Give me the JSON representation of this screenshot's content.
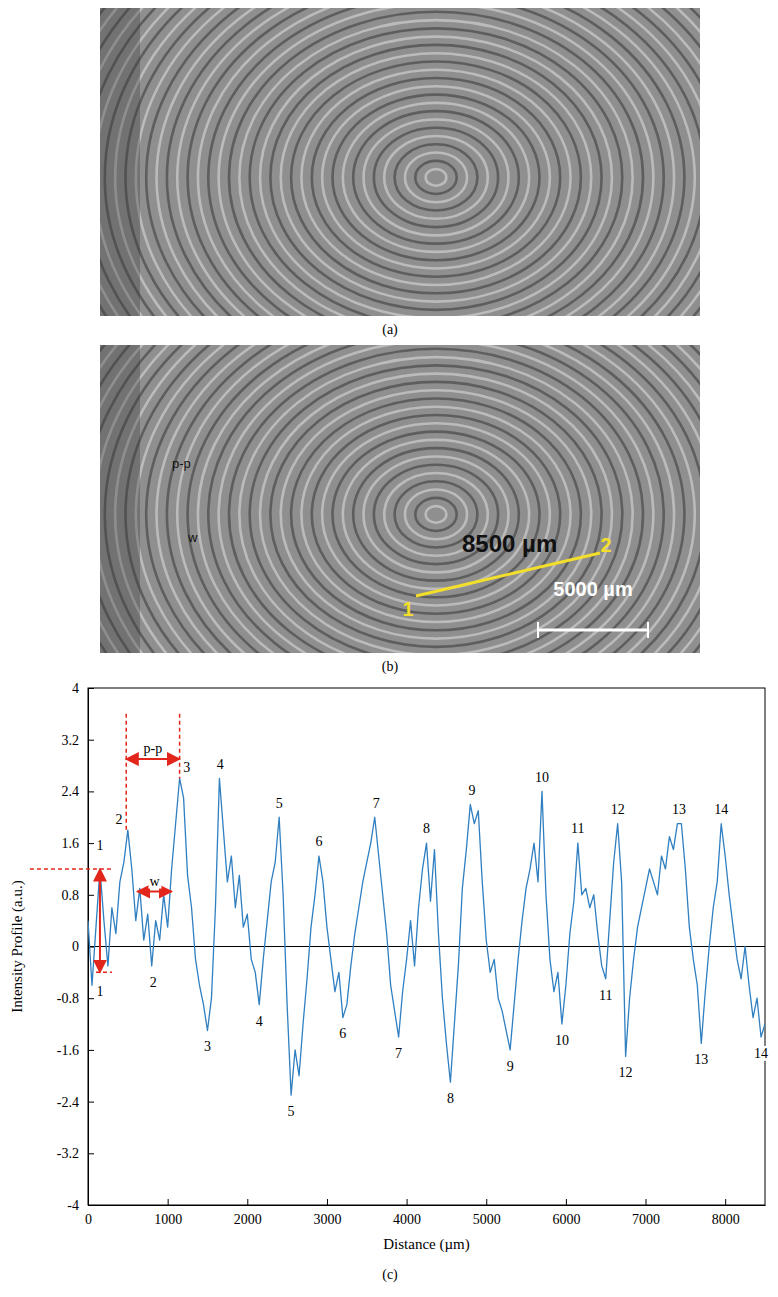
{
  "figure": {
    "panel_a": {
      "label": "(a)"
    },
    "panel_b": {
      "label": "(b)",
      "line_length_label": "8500 µm",
      "line_start": "1",
      "line_end": "2",
      "scale_bar_label": "5000 µm",
      "pp_label": "p-p",
      "w_label": "w"
    }
  },
  "chart_data": {
    "type": "line",
    "panel_label": "(c)",
    "x_label": "Distance (µm)",
    "y_label": "Intensity Profile (a.u.)",
    "color": "#2f7fc1",
    "grid": false,
    "xlim": [
      0,
      8500
    ],
    "xticks": [
      0,
      1000,
      2000,
      3000,
      4000,
      5000,
      6000,
      7000,
      8000
    ],
    "ylim": [
      -4,
      4
    ],
    "yticks": [
      -4,
      -3.2,
      -2.4,
      -1.6,
      -0.8,
      0,
      0.8,
      1.6,
      2.4,
      3.2,
      4
    ],
    "hlines": [
      0
    ],
    "x": [
      0,
      50,
      100,
      150,
      200,
      250,
      300,
      350,
      400,
      450,
      500,
      550,
      600,
      650,
      700,
      750,
      800,
      850,
      900,
      950,
      1000,
      1050,
      1100,
      1150,
      1200,
      1250,
      1300,
      1350,
      1400,
      1450,
      1500,
      1550,
      1600,
      1650,
      1700,
      1750,
      1800,
      1850,
      1900,
      1950,
      2000,
      2050,
      2100,
      2150,
      2200,
      2250,
      2300,
      2350,
      2400,
      2450,
      2500,
      2550,
      2600,
      2650,
      2700,
      2750,
      2800,
      2850,
      2900,
      2950,
      3000,
      3050,
      3100,
      3150,
      3200,
      3250,
      3300,
      3350,
      3400,
      3450,
      3500,
      3550,
      3600,
      3650,
      3700,
      3750,
      3800,
      3850,
      3900,
      3950,
      4000,
      4050,
      4100,
      4150,
      4200,
      4250,
      4300,
      4350,
      4400,
      4450,
      4500,
      4550,
      4600,
      4650,
      4700,
      4750,
      4800,
      4850,
      4900,
      4950,
      5000,
      5050,
      5100,
      5150,
      5200,
      5250,
      5300,
      5350,
      5400,
      5450,
      5500,
      5550,
      5600,
      5650,
      5700,
      5750,
      5800,
      5850,
      5900,
      5950,
      6000,
      6050,
      6100,
      6150,
      6200,
      6250,
      6300,
      6350,
      6400,
      6450,
      6500,
      6550,
      6600,
      6650,
      6700,
      6750,
      6800,
      6850,
      6900,
      6950,
      7000,
      7050,
      7100,
      7150,
      7200,
      7250,
      7300,
      7350,
      7400,
      7450,
      7500,
      7550,
      7600,
      7650,
      7700,
      7750,
      7800,
      7850,
      7900,
      7950,
      8000,
      8050,
      8100,
      8150,
      8200,
      8250,
      8300,
      8350,
      8400,
      8450,
      8500
    ],
    "values": [
      0.4,
      -0.6,
      0.3,
      1.2,
      0.4,
      -0.3,
      0.6,
      0.2,
      1.0,
      1.3,
      1.8,
      1.2,
      0.4,
      0.9,
      0.1,
      0.5,
      -0.3,
      0.4,
      0.1,
      0.8,
      0.3,
      1.2,
      1.9,
      2.6,
      2.3,
      1.1,
      0.6,
      -0.2,
      -0.6,
      -0.9,
      -1.3,
      -0.8,
      0.6,
      2.6,
      1.8,
      1.0,
      1.4,
      0.6,
      1.1,
      0.3,
      0.5,
      -0.2,
      -0.4,
      -0.9,
      -0.2,
      0.4,
      1.0,
      1.3,
      2.0,
      0.8,
      -0.9,
      -2.3,
      -1.6,
      -2.0,
      -1.2,
      -0.5,
      0.3,
      0.8,
      1.4,
      1.0,
      0.3,
      -0.2,
      -0.7,
      -0.4,
      -1.1,
      -0.9,
      -0.3,
      0.2,
      0.6,
      1.0,
      1.3,
      1.6,
      2.0,
      1.4,
      0.8,
      0.2,
      -0.6,
      -1.0,
      -1.4,
      -0.7,
      -0.2,
      0.4,
      -0.3,
      0.6,
      1.2,
      1.6,
      0.7,
      1.5,
      0.2,
      -0.8,
      -1.5,
      -2.1,
      -1.2,
      -0.3,
      0.9,
      1.5,
      2.2,
      1.9,
      2.1,
      1.0,
      0.1,
      -0.4,
      -0.2,
      -0.8,
      -1.0,
      -1.3,
      -1.6,
      -0.9,
      -0.2,
      0.4,
      0.9,
      1.2,
      1.6,
      1.0,
      2.4,
      0.8,
      -0.2,
      -0.7,
      -0.4,
      -1.2,
      -0.6,
      0.2,
      0.7,
      1.6,
      0.8,
      0.9,
      0.6,
      0.8,
      0.2,
      -0.3,
      -0.5,
      0.4,
      1.3,
      1.9,
      1.0,
      -1.7,
      -0.8,
      -0.2,
      0.3,
      0.6,
      0.9,
      1.2,
      1.0,
      0.8,
      1.4,
      1.2,
      1.7,
      1.5,
      1.9,
      1.9,
      1.2,
      0.3,
      -0.2,
      -0.6,
      -1.5,
      -0.7,
      0.0,
      0.6,
      1.0,
      1.9,
      1.4,
      0.8,
      0.3,
      -0.2,
      -0.5,
      0.0,
      -0.6,
      -1.1,
      -0.8,
      -1.4,
      -1.2
    ],
    "peak_labels": [
      {
        "text": "1",
        "x": 150,
        "y": 1.5
      },
      {
        "text": "2",
        "x": 390,
        "y": 1.9
      },
      {
        "text": "3",
        "x": 1240,
        "y": 2.7
      },
      {
        "text": "4",
        "x": 1660,
        "y": 2.75
      },
      {
        "text": "5",
        "x": 2400,
        "y": 2.15
      },
      {
        "text": "6",
        "x": 2900,
        "y": 1.55
      },
      {
        "text": "7",
        "x": 3620,
        "y": 2.15
      },
      {
        "text": "8",
        "x": 4250,
        "y": 1.75
      },
      {
        "text": "9",
        "x": 4820,
        "y": 2.35
      },
      {
        "text": "10",
        "x": 5700,
        "y": 2.55
      },
      {
        "text": "11",
        "x": 6150,
        "y": 1.75
      },
      {
        "text": "12",
        "x": 6650,
        "y": 2.05
      },
      {
        "text": "13",
        "x": 7420,
        "y": 2.05
      },
      {
        "text": "14",
        "x": 7950,
        "y": 2.05
      }
    ],
    "trough_labels": [
      {
        "text": "1",
        "x": 150,
        "y": -0.6
      },
      {
        "text": "2",
        "x": 820,
        "y": -0.45
      },
      {
        "text": "3",
        "x": 1500,
        "y": -1.45
      },
      {
        "text": "4",
        "x": 2150,
        "y": -1.05
      },
      {
        "text": "5",
        "x": 2550,
        "y": -2.45
      },
      {
        "text": "6",
        "x": 3200,
        "y": -1.25
      },
      {
        "text": "7",
        "x": 3900,
        "y": -1.55
      },
      {
        "text": "8",
        "x": 4550,
        "y": -2.25
      },
      {
        "text": "9",
        "x": 5300,
        "y": -1.75
      },
      {
        "text": "10",
        "x": 5950,
        "y": -1.35
      },
      {
        "text": "11",
        "x": 6500,
        "y": -0.65
      },
      {
        "text": "12",
        "x": 6750,
        "y": -1.85
      },
      {
        "text": "13",
        "x": 7700,
        "y": -1.65
      },
      {
        "text": "14",
        "x": 8450,
        "y": -1.55
      }
    ],
    "pp_annotation": {
      "text": "p-p",
      "x0": 480,
      "x1": 1150,
      "y": 2.9
    },
    "w_annotation": {
      "text": "w",
      "x0": 620,
      "x1": 1050,
      "y": 0.85
    },
    "amplitude_arrow": {
      "x": 150,
      "y0": 1.2,
      "y1": -0.4
    }
  }
}
